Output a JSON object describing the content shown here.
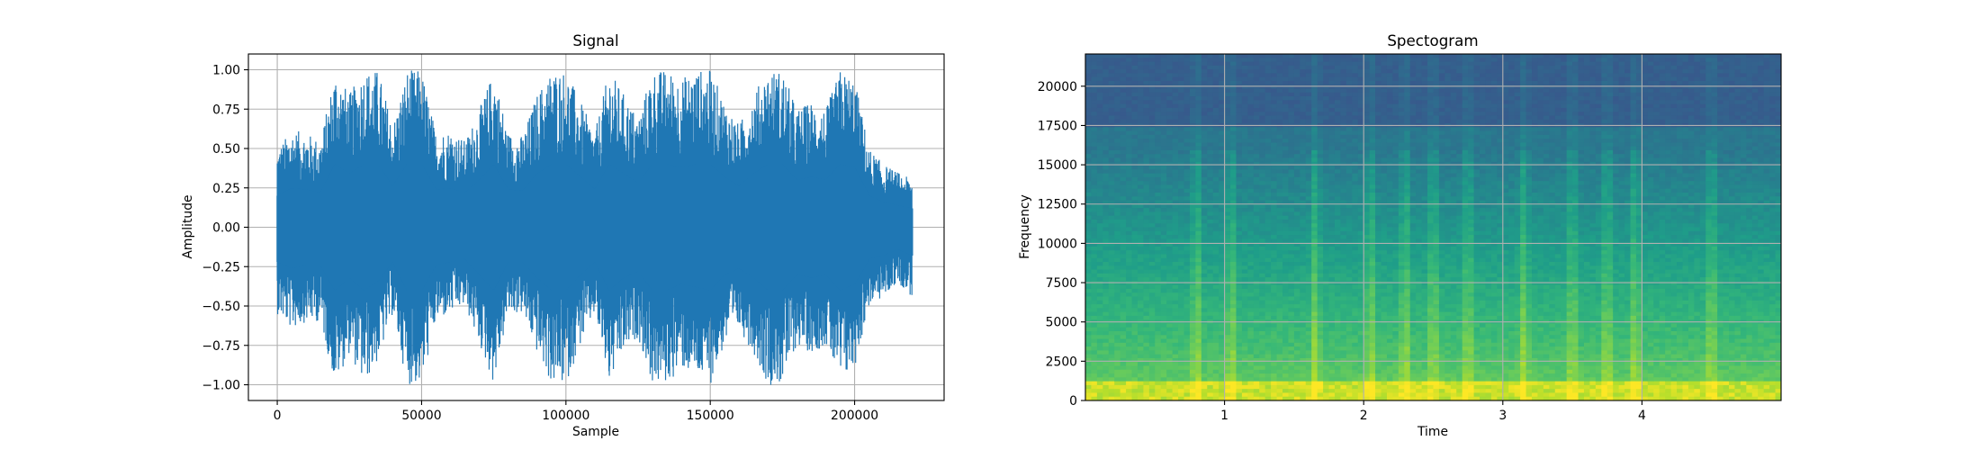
{
  "chart_data": [
    {
      "type": "line",
      "title": "Signal",
      "xlabel": "Sample",
      "ylabel": "Amplitude",
      "xlim": [
        -10000,
        231000
      ],
      "ylim": [
        -1.1,
        1.1
      ],
      "grid": true,
      "line_color": "#1f77b4",
      "x_ticks": [
        0,
        50000,
        100000,
        150000,
        200000
      ],
      "x_tick_labels": [
        "0",
        "50000",
        "100000",
        "150000",
        "200000"
      ],
      "y_ticks": [
        1.0,
        0.75,
        0.5,
        0.25,
        0.0,
        -0.25,
        -0.5,
        -0.75,
        -1.0
      ],
      "y_tick_labels": [
        "1.00",
        "0.75",
        "0.50",
        "0.25",
        "0.00",
        "−0.25",
        "−0.50",
        "−0.75",
        "−1.00"
      ],
      "series": [
        {
          "x": [
            0,
            5000,
            10000,
            15000,
            20000,
            25000,
            30000,
            35000,
            40000,
            45000,
            50000,
            55000,
            60000,
            65000,
            70000,
            75000,
            80000,
            85000,
            90000,
            95000,
            100000,
            105000,
            110000,
            115000,
            120000,
            125000,
            130000,
            135000,
            140000,
            145000,
            150000,
            155000,
            160000,
            165000,
            170000,
            175000,
            180000,
            185000,
            190000,
            195000,
            200000,
            205000,
            210000,
            215000,
            220000
          ],
          "upper": [
            0.5,
            0.62,
            0.6,
            0.55,
            1.0,
            0.85,
            1.0,
            1.0,
            0.65,
            1.0,
            1.0,
            0.6,
            0.62,
            0.55,
            0.75,
            1.0,
            0.6,
            0.58,
            0.85,
            1.0,
            1.0,
            0.8,
            0.6,
            1.0,
            0.85,
            0.7,
            1.0,
            1.0,
            0.95,
            1.0,
            1.0,
            0.8,
            0.65,
            0.85,
            1.0,
            1.0,
            0.75,
            0.8,
            0.75,
            1.0,
            0.95,
            0.5,
            0.4,
            0.35,
            0.3
          ],
          "lower": [
            -0.55,
            -0.65,
            -0.6,
            -0.6,
            -1.0,
            -0.8,
            -1.0,
            -0.85,
            -0.55,
            -1.0,
            -1.0,
            -0.6,
            -0.55,
            -0.5,
            -0.75,
            -1.0,
            -0.55,
            -0.55,
            -0.8,
            -1.0,
            -1.0,
            -0.75,
            -0.55,
            -1.0,
            -0.8,
            -0.7,
            -1.0,
            -1.0,
            -0.9,
            -0.95,
            -1.0,
            -0.75,
            -0.65,
            -0.8,
            -1.0,
            -1.0,
            -0.75,
            -0.8,
            -0.75,
            -1.0,
            -0.9,
            -0.5,
            -0.45,
            -0.35,
            -0.45
          ]
        }
      ]
    },
    {
      "type": "heatmap",
      "title": "Spectogram",
      "xlabel": "Time",
      "ylabel": "Frequency",
      "xlim": [
        0,
        5.0
      ],
      "ylim": [
        0,
        22050
      ],
      "grid": true,
      "colormap": "viridis",
      "x_ticks": [
        1,
        2,
        3,
        4
      ],
      "x_tick_labels": [
        "1",
        "2",
        "3",
        "4"
      ],
      "y_ticks": [
        0,
        2500,
        5000,
        7500,
        10000,
        12500,
        15000,
        17500,
        20000
      ],
      "y_tick_labels": [
        "0",
        "2500",
        "5000",
        "7500",
        "10000",
        "12500",
        "15000",
        "17500",
        "20000"
      ],
      "bright_onsets": [
        0.8,
        1.05,
        1.65,
        2.05,
        2.3,
        2.5,
        2.75,
        3.15,
        3.5,
        3.75,
        3.95,
        4.5
      ]
    }
  ]
}
